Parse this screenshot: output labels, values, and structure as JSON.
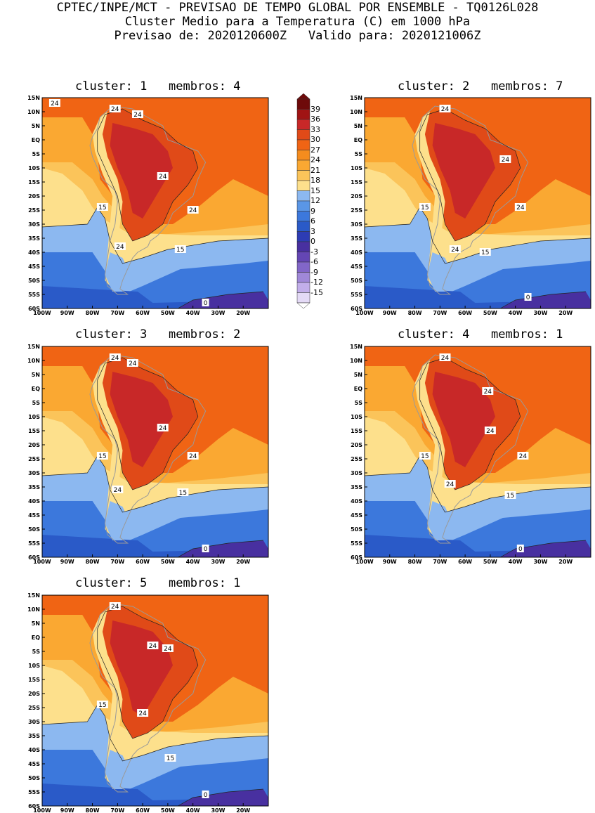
{
  "header": {
    "line1": "CPTEC/INPE/MCT - PREVISAO DE TEMPO GLOBAL POR ENSEMBLE - TQ0126L028",
    "line2": "Cluster Medio para a Temperatura (C) em 1000 hPa",
    "line3": "Previsao de: 2020120600Z   Valido para: 2020121006Z"
  },
  "axes": {
    "lat_ticks": [
      "15N",
      "10N",
      "5N",
      "EQ",
      "5S",
      "10S",
      "15S",
      "20S",
      "25S",
      "30S",
      "35S",
      "40S",
      "45S",
      "50S",
      "55S",
      "60S"
    ],
    "lon_ticks": [
      "100W",
      "90W",
      "80W",
      "70W",
      "60W",
      "50W",
      "40W",
      "30W",
      "20W"
    ]
  },
  "panels": [
    {
      "title": "cluster: 1   membros: 4",
      "contour_labels": [
        {
          "text": "24",
          "lon": -95,
          "lat": 13
        },
        {
          "text": "24",
          "lon": -71,
          "lat": 11
        },
        {
          "text": "24",
          "lon": -62,
          "lat": 9
        },
        {
          "text": "24",
          "lon": -52,
          "lat": -13
        },
        {
          "text": "24",
          "lon": -40,
          "lat": -25
        },
        {
          "text": "15",
          "lon": -76,
          "lat": -24
        },
        {
          "text": "24",
          "lon": -69,
          "lat": -38
        },
        {
          "text": "15",
          "lon": -45,
          "lat": -39
        },
        {
          "text": "0",
          "lon": -35,
          "lat": -58
        }
      ]
    },
    {
      "title": "cluster: 2   membros: 7",
      "contour_labels": [
        {
          "text": "24",
          "lon": -68,
          "lat": 11
        },
        {
          "text": "24",
          "lon": -44,
          "lat": -7
        },
        {
          "text": "24",
          "lon": -38,
          "lat": -24
        },
        {
          "text": "15",
          "lon": -76,
          "lat": -24
        },
        {
          "text": "24",
          "lon": -64,
          "lat": -39
        },
        {
          "text": "15",
          "lon": -52,
          "lat": -40
        },
        {
          "text": "0",
          "lon": -35,
          "lat": -56
        }
      ]
    },
    {
      "title": "cluster: 3   membros: 2",
      "contour_labels": [
        {
          "text": "24",
          "lon": -71,
          "lat": 11
        },
        {
          "text": "24",
          "lon": -64,
          "lat": 9
        },
        {
          "text": "24",
          "lon": -52,
          "lat": -14
        },
        {
          "text": "24",
          "lon": -40,
          "lat": -24
        },
        {
          "text": "15",
          "lon": -76,
          "lat": -24
        },
        {
          "text": "24",
          "lon": -70,
          "lat": -36
        },
        {
          "text": "15",
          "lon": -44,
          "lat": -37
        },
        {
          "text": "0",
          "lon": -35,
          "lat": -57
        }
      ]
    },
    {
      "title": "cluster: 4   membros: 1",
      "contour_labels": [
        {
          "text": "24",
          "lon": -68,
          "lat": 11
        },
        {
          "text": "24",
          "lon": -51,
          "lat": -1
        },
        {
          "text": "24",
          "lon": -50,
          "lat": -15
        },
        {
          "text": "24",
          "lon": -37,
          "lat": -24
        },
        {
          "text": "15",
          "lon": -76,
          "lat": -24
        },
        {
          "text": "24",
          "lon": -66,
          "lat": -34
        },
        {
          "text": "15",
          "lon": -42,
          "lat": -38
        },
        {
          "text": "0",
          "lon": -38,
          "lat": -57
        }
      ]
    },
    {
      "title": "cluster: 5   membros: 1",
      "contour_labels": [
        {
          "text": "24",
          "lon": -71,
          "lat": 11
        },
        {
          "text": "24",
          "lon": -56,
          "lat": -3
        },
        {
          "text": "24",
          "lon": -50,
          "lat": -4
        },
        {
          "text": "15",
          "lon": -76,
          "lat": -24
        },
        {
          "text": "24",
          "lon": -60,
          "lat": -27
        },
        {
          "text": "15",
          "lon": -49,
          "lat": -43
        },
        {
          "text": "0",
          "lon": -35,
          "lat": -56
        }
      ]
    }
  ],
  "colorbar": {
    "labels": [
      "39",
      "36",
      "33",
      "30",
      "27",
      "24",
      "21",
      "18",
      "15",
      "12",
      "9",
      "6",
      "3",
      "0",
      "-3",
      "-6",
      "-9",
      "-12",
      "-15"
    ],
    "colors": [
      "#6e0a0a",
      "#a01414",
      "#c82828",
      "#e04a18",
      "#f06414",
      "#f58c1e",
      "#faa832",
      "#fbc45a",
      "#fde08c",
      "#8cb8f0",
      "#5a96e6",
      "#3c78dc",
      "#2a5ac8",
      "#2d3cb4",
      "#4830a0",
      "#6446b4",
      "#8266c8",
      "#a088d8",
      "#c2aeea",
      "#e4daf6"
    ]
  },
  "palette": {
    "ocean_warm": "#f06414",
    "coastal_warm": "#f58c1e",
    "warm_mid": "#faa832",
    "temperate": "#fbc45a",
    "mild": "#fde08c",
    "cool": "#8cb8f0",
    "cold": "#3c78dc",
    "colder": "#2a5ac8",
    "sub_zero": "#4830a0",
    "land_hot": "#e04a18",
    "land_very_hot": "#c82828",
    "andes": "#fde08c",
    "border_line": "#9a9a9a"
  }
}
